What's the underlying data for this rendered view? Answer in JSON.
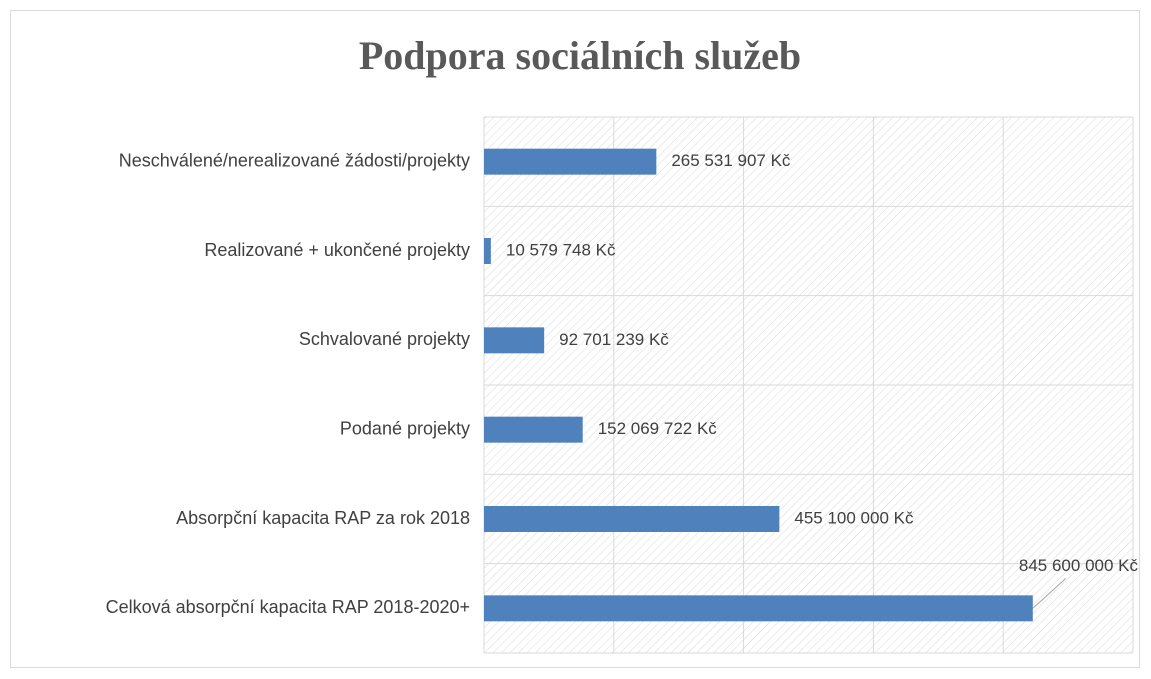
{
  "chart_data": {
    "type": "bar",
    "orientation": "horizontal",
    "title": "Podpora sociálních služeb",
    "categories": [
      "Neschválené/nerealizované žádosti/projekty",
      "Realizované + ukončené projekty",
      "Schvalované projekty",
      "Podané projekty",
      "Absorpční kapacita RAP za rok 2018",
      "Celková absorpční kapacita RAP 2018-2020+"
    ],
    "values": [
      265531907,
      10579748,
      92701239,
      152069722,
      455100000,
      845600000
    ],
    "value_labels": [
      "265 531 907 Kč",
      "10 579 748 Kč",
      "92 701 239 Kč",
      "152 069 722 Kč",
      "455 100 000 Kč",
      "845 600 000 Kč"
    ],
    "color": "#4f81bd",
    "xlim": [
      0,
      1000000000
    ],
    "xticks": [
      0,
      200000000,
      400000000,
      600000000,
      800000000,
      1000000000
    ],
    "grid": true
  }
}
